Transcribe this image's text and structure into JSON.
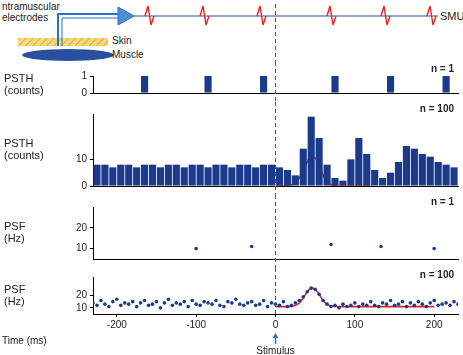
{
  "diagram": {
    "electrode_label": [
      "ntramuscular",
      "electrodes"
    ],
    "skin_label": "Skin",
    "muscle_label": "Muscle",
    "unit_label": "SMU"
  },
  "stimulus": {
    "x": 0,
    "label": "Stimulus"
  },
  "chart_data": [
    {
      "type": "histogram",
      "ylabel": "PSTH\n(counts)",
      "annotation": "n = 1",
      "color": "#1c3a8c",
      "bins": [
        -230,
        -220,
        -210,
        -200,
        -190,
        -180,
        -170,
        -160,
        -150,
        -140,
        -130,
        -120,
        -110,
        -100,
        -90,
        -80,
        -70,
        -60,
        -50,
        -40,
        -30,
        -20,
        -10,
        0,
        10,
        20,
        30,
        40,
        50,
        60,
        70,
        80,
        90,
        100,
        110,
        120,
        130,
        140,
        150,
        160,
        170,
        180,
        190,
        200,
        210,
        220,
        230
      ],
      "counts": [
        0,
        0,
        0,
        0,
        0,
        0,
        1,
        0,
        0,
        0,
        0,
        0,
        0,
        0,
        1,
        0,
        0,
        0,
        0,
        0,
        0,
        1,
        0,
        0,
        0,
        0,
        0,
        0,
        0,
        0,
        1,
        0,
        0,
        0,
        0,
        0,
        0,
        1,
        0,
        0,
        0,
        0,
        0,
        0,
        1,
        0
      ],
      "xlim": [
        -230,
        230
      ],
      "xticks": [
        -200,
        -100,
        0,
        100,
        200
      ],
      "ylim": [
        0,
        1
      ],
      "yticks": [
        0,
        1
      ],
      "grid": false,
      "tick_labels": "y"
    },
    {
      "type": "histogram",
      "ylabel": "PSTH\n(counts)",
      "annotation": "n = 100",
      "color": "#1c3a8c",
      "bins": [
        -230,
        -220,
        -210,
        -200,
        -190,
        -180,
        -170,
        -160,
        -150,
        -140,
        -130,
        -120,
        -110,
        -100,
        -90,
        -80,
        -70,
        -60,
        -50,
        -40,
        -30,
        -20,
        -10,
        0,
        10,
        20,
        30,
        40,
        50,
        60,
        70,
        80,
        90,
        100,
        110,
        120,
        130,
        140,
        150,
        160,
        170,
        180,
        190,
        200,
        210,
        220,
        230
      ],
      "counts": [
        8,
        8,
        7,
        8,
        8,
        7,
        8,
        8,
        7,
        8,
        8,
        7,
        8,
        8,
        7,
        8,
        8,
        7,
        8,
        8,
        7,
        8,
        8,
        7,
        6,
        4,
        14,
        26,
        18,
        8,
        3,
        2,
        10,
        18,
        12,
        6,
        3,
        5,
        9,
        15,
        14,
        12,
        11,
        9,
        8,
        7
      ],
      "overlay": {
        "type": "line",
        "color": "#e8231c",
        "x": [
          0,
          10,
          20,
          25,
          30,
          35,
          40,
          45,
          50,
          55,
          60,
          65,
          70,
          80,
          100,
          120
        ],
        "values": [
          0,
          0,
          0.5,
          1,
          3,
          6,
          9,
          11,
          10.5,
          8,
          4,
          1.5,
          0.5,
          0,
          0,
          0
        ]
      },
      "xlim": [
        -230,
        230
      ],
      "xticks": [
        -200,
        -100,
        0,
        100,
        200
      ],
      "ylim": [
        0,
        27
      ],
      "yticks": [
        0,
        10
      ],
      "grid": false,
      "tick_labels": "y"
    },
    {
      "type": "scatter",
      "ylabel": "PSF\n(Hz)",
      "annotation": "n = 1",
      "color": "#1c3a8c",
      "marker": "circle",
      "x": [
        -100,
        -30,
        70,
        133,
        200
      ],
      "values": [
        10,
        11,
        12,
        11,
        10
      ],
      "xlim": [
        -230,
        230
      ],
      "xticks": [
        -200,
        -100,
        0,
        100,
        200
      ],
      "ylim": [
        5,
        30
      ],
      "yticks": [
        10,
        20
      ],
      "grid": false,
      "tick_labels": "y"
    },
    {
      "type": "scatter",
      "ylabel": "PSF\n(Hz)",
      "annotation": "n = 100",
      "xlabel": "Time (ms)",
      "color": "#1c3a8c",
      "marker": "circle",
      "x": [
        -230,
        -225,
        -220,
        -215,
        -210,
        -205,
        -200,
        -195,
        -190,
        -185,
        -180,
        -175,
        -170,
        -165,
        -160,
        -155,
        -150,
        -145,
        -140,
        -135,
        -130,
        -125,
        -120,
        -115,
        -110,
        -105,
        -100,
        -95,
        -90,
        -85,
        -80,
        -75,
        -70,
        -65,
        -60,
        -55,
        -50,
        -45,
        -40,
        -35,
        -30,
        -25,
        -20,
        -15,
        -10,
        -5,
        0,
        5,
        10,
        15,
        20,
        25,
        30,
        35,
        40,
        45,
        50,
        55,
        60,
        65,
        70,
        75,
        80,
        85,
        90,
        95,
        100,
        105,
        110,
        115,
        120,
        125,
        130,
        135,
        140,
        145,
        150,
        155,
        160,
        165,
        170,
        175,
        180,
        185,
        190,
        195,
        200,
        205,
        210,
        215,
        220,
        225,
        230
      ],
      "values": [
        14,
        12,
        16,
        13,
        11,
        15,
        17,
        12,
        14,
        13,
        15,
        11,
        14,
        16,
        12,
        13,
        15,
        10,
        14,
        17,
        12,
        14,
        13,
        15,
        11,
        16,
        13,
        12,
        15,
        14,
        13,
        16,
        12,
        11,
        15,
        14,
        17,
        13,
        12,
        14,
        15,
        12,
        13,
        16,
        11,
        14,
        13,
        12,
        15,
        11,
        12,
        14,
        16,
        19,
        23,
        26,
        25,
        21,
        16,
        13,
        11,
        12,
        10,
        13,
        11,
        12,
        14,
        11,
        13,
        12,
        15,
        12,
        11,
        14,
        13,
        16,
        12,
        13,
        15,
        11,
        14,
        12,
        15,
        13,
        11,
        14,
        16,
        12,
        13,
        14,
        12,
        15,
        13
      ],
      "overlay": {
        "type": "line",
        "color": "#e8231c",
        "x": [
          0,
          20,
          25,
          30,
          35,
          40,
          45,
          50,
          55,
          60,
          65,
          70,
          80,
          100,
          120,
          150,
          180,
          200
        ],
        "values": [
          11,
          11,
          12,
          14,
          18,
          23,
          26,
          25,
          21,
          16,
          13,
          11.5,
          11,
          11,
          11,
          11,
          11,
          11
        ]
      },
      "xlim": [
        -230,
        230
      ],
      "xticks": [
        -200,
        -100,
        0,
        100,
        200
      ],
      "ylim": [
        5,
        35
      ],
      "yticks": [
        10,
        20
      ],
      "grid": false
    }
  ]
}
